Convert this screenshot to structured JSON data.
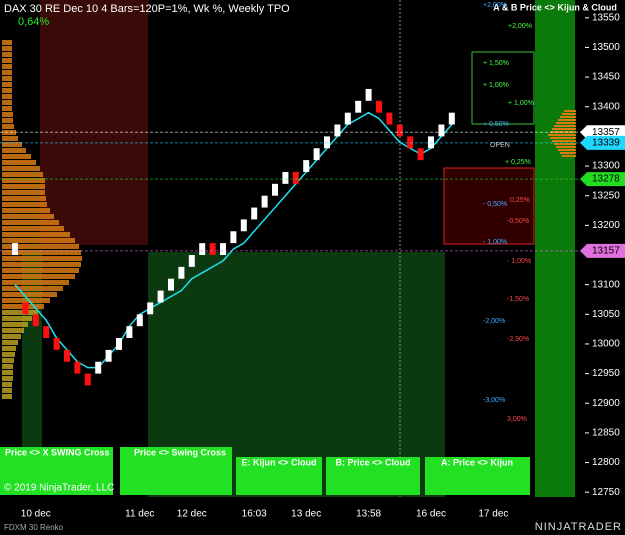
{
  "chart_data": {
    "type": "renko",
    "title": "DAX 30 RE Dec 10  4 Bars=120P=1%, Wk %, Weekly TPO",
    "change": "0,64%",
    "corner_note": "A & B Price <> Kijun & Cloud",
    "instrument": "FDXM 30 Renko",
    "copyright": "© 2019 NinjaTrader, LLC",
    "brand": "NINJATRADER",
    "buttons": [
      "Price <> X SWING Cross",
      "Price <> Swing Cross",
      "E: Kijun <> Cloud",
      "B: Price <> Cloud",
      "A: Price <> Kijun"
    ],
    "annotations": [
      "+2,00%",
      "+2,00%",
      "+ 1,50%",
      "+ 1,00%",
      "+ 1,00%",
      "+ 0,50%",
      "OPEN",
      "+ 0,25%",
      "0,25%",
      "- 0,50%",
      "-0,50%",
      "- 1,00%",
      "- 1,00%",
      "-1,50%",
      "-2,00%",
      "-2,90%",
      "-3,00%",
      "3,00%"
    ],
    "categories": [
      null,
      null,
      "10 dec",
      null,
      null,
      null,
      null,
      null,
      null,
      null,
      null,
      null,
      "11 dec",
      null,
      null,
      null,
      null,
      "12 dec",
      null,
      null,
      null,
      null,
      null,
      "16:03",
      null,
      null,
      null,
      null,
      "13 dec",
      null,
      null,
      null,
      null,
      null,
      "13:58",
      null,
      null,
      null,
      null,
      null,
      "16 dec",
      null,
      null,
      null,
      null,
      null,
      "17 dec",
      null,
      null,
      null
    ],
    "open": [
      13150,
      13070,
      13050,
      13030,
      13010,
      12990,
      12970,
      12950,
      12950,
      12970,
      12990,
      13010,
      13030,
      13050,
      13070,
      13090,
      13110,
      13130,
      13150,
      13170,
      13150,
      13170,
      13190,
      13210,
      13230,
      13250,
      13270,
      13290,
      13290,
      13310,
      13330,
      13350,
      13370,
      13390,
      13410,
      13410,
      13390,
      13370,
      13350,
      13330,
      13330,
      13350,
      13370,
      null,
      null,
      null,
      null,
      null,
      null,
      null
    ],
    "close": [
      13170,
      13050,
      13030,
      13010,
      12990,
      12970,
      12950,
      12930,
      12970,
      12990,
      13010,
      13030,
      13050,
      13070,
      13090,
      13110,
      13130,
      13150,
      13170,
      13150,
      13170,
      13190,
      13210,
      13230,
      13250,
      13270,
      13290,
      13270,
      13310,
      13330,
      13350,
      13370,
      13390,
      13410,
      13430,
      13390,
      13370,
      13350,
      13330,
      13310,
      13350,
      13370,
      13390,
      null,
      null,
      null,
      null,
      null,
      null,
      null
    ],
    "kijun": [
      13100,
      13080,
      13060,
      13040,
      13010,
      12990,
      12970,
      12960,
      12960,
      12980,
      13000,
      13030,
      13050,
      13060,
      13070,
      13080,
      13090,
      13110,
      13120,
      13130,
      13140,
      13160,
      13170,
      13190,
      13210,
      13230,
      13250,
      13270,
      13290,
      13310,
      13330,
      13350,
      13370,
      13380,
      13390,
      13380,
      13360,
      13340,
      13330,
      13320,
      13330,
      13350,
      13370,
      null,
      null,
      null,
      null,
      null,
      null,
      null
    ],
    "up_color": "#ffffff",
    "down_color": "#ff1010",
    "line_color": "#20e0f0",
    "price_markers": [
      {
        "value": 13357,
        "color": "#ffffff"
      },
      {
        "value": 13339,
        "color": "#20d8ff"
      },
      {
        "value": 13278,
        "color": "#22dd22"
      },
      {
        "value": 13157,
        "color": "#e070e0"
      }
    ],
    "ylim": [
      12720,
      13580
    ],
    "yticks": [
      12750,
      12800,
      12850,
      12900,
      12950,
      13000,
      13050,
      13100,
      13150,
      13200,
      13250,
      13300,
      13350,
      13400,
      13450,
      13500,
      13550
    ]
  }
}
